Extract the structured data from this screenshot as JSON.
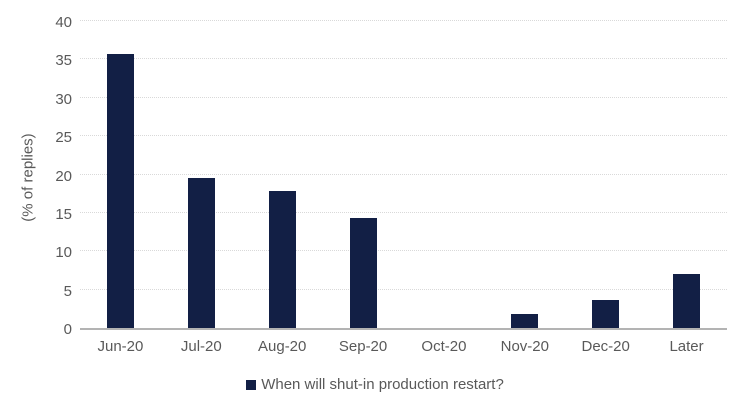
{
  "chart_data": {
    "type": "bar",
    "title": "",
    "xlabel": "",
    "ylabel": "(% of replies)",
    "categories": [
      "Jun-20",
      "Jul-20",
      "Aug-20",
      "Sep-20",
      "Oct-20",
      "Nov-20",
      "Dec-20",
      "Later"
    ],
    "values": [
      35.7,
      19.6,
      17.9,
      14.3,
      0,
      1.8,
      3.6,
      7.1
    ],
    "yticks": [
      0,
      5,
      10,
      15,
      20,
      25,
      30,
      35,
      40
    ],
    "ylim": [
      0,
      40
    ],
    "grid": "horizontal-dotted",
    "legend": {
      "position": "bottom",
      "entries": [
        "When will shut-in production restart?"
      ]
    },
    "colors": {
      "bar": "#121f45",
      "text": "#595959",
      "gridline": "#d9d9d9",
      "axis_line": "#b3b3b3",
      "background": "#ffffff"
    }
  }
}
